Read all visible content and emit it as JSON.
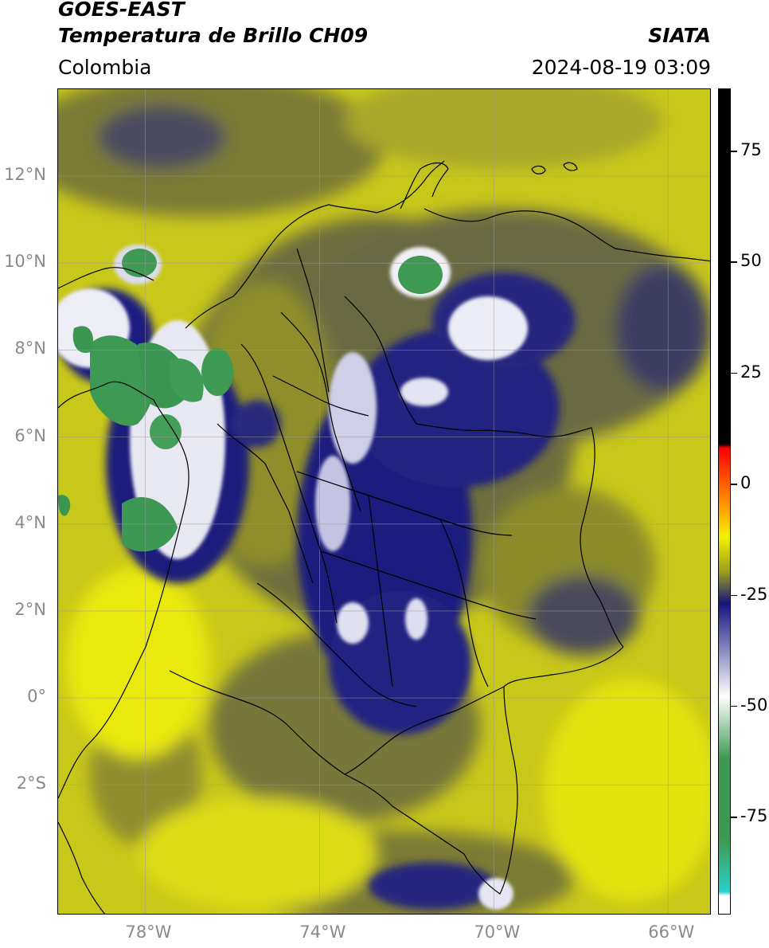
{
  "header": {
    "satellite": "GOES-EAST",
    "product": "Temperatura de Brillo CH09",
    "brand": "SIATA",
    "region": "Colombia",
    "timestamp": "2024-08-19 03:09"
  },
  "map": {
    "lon_range": [
      -80,
      -65
    ],
    "lat_range": [
      -5,
      14
    ],
    "lat_ticks": [
      {
        "value": 12,
        "label": "12°N"
      },
      {
        "value": 10,
        "label": "10°N"
      },
      {
        "value": 8,
        "label": "8°N"
      },
      {
        "value": 6,
        "label": "6°N"
      },
      {
        "value": 4,
        "label": "4°N"
      },
      {
        "value": 2,
        "label": "2°N"
      },
      {
        "value": 0,
        "label": "0°"
      },
      {
        "value": -2,
        "label": "2°S"
      }
    ],
    "lon_ticks": [
      {
        "value": -78,
        "label": "78°W"
      },
      {
        "value": -74,
        "label": "74°W"
      },
      {
        "value": -70,
        "label": "70°W"
      },
      {
        "value": -66,
        "label": "66°W"
      }
    ],
    "gridlines": true
  },
  "colorbar": {
    "ticks": [
      {
        "value": 75,
        "label": "75"
      },
      {
        "value": 50,
        "label": "50"
      },
      {
        "value": 25,
        "label": "25"
      },
      {
        "value": 0,
        "label": "0"
      },
      {
        "value": -25,
        "label": "-25"
      },
      {
        "value": -50,
        "label": "-50"
      },
      {
        "value": -75,
        "label": "-75"
      }
    ],
    "min": -97,
    "max": 89,
    "colors": {
      "warm": "#000000",
      "red": "#ff0000",
      "orange": "#ff9900",
      "yellow": "#f2f200",
      "olive": "#9a9a20",
      "navy": "#141480",
      "white": "#ffffff",
      "green": "#3c9a50",
      "cyan": "#2ad0c8"
    }
  }
}
